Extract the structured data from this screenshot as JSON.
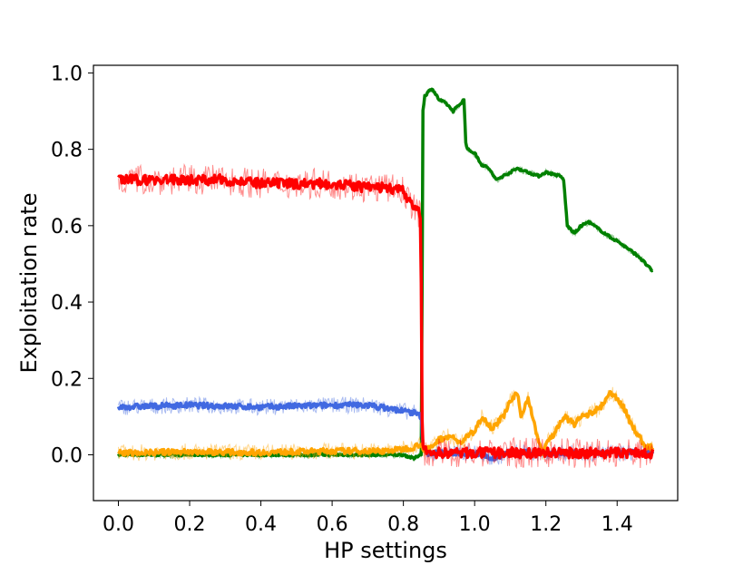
{
  "chart_data": {
    "type": "line",
    "title": "",
    "xlabel": "HP settings",
    "ylabel": "Exploitation rate",
    "xlim": [
      -0.07,
      1.57
    ],
    "ylim": [
      -0.12,
      1.02
    ],
    "xticks": [
      0.0,
      0.2,
      0.4,
      0.6,
      0.8,
      1.0,
      1.2,
      1.4
    ],
    "xtick_labels": [
      "0.0",
      "0.2",
      "0.4",
      "0.6",
      "0.8",
      "1.0",
      "1.2",
      "1.4"
    ],
    "yticks": [
      0.0,
      0.2,
      0.4,
      0.6,
      0.8,
      1.0
    ],
    "ytick_labels": [
      "0.0",
      "0.2",
      "0.4",
      "0.6",
      "0.8",
      "1.0"
    ],
    "grid": false,
    "legend": "none",
    "series": [
      {
        "color": "#008000",
        "x": [
          0.0,
          0.2,
          0.4,
          0.6,
          0.8,
          0.83,
          0.845,
          0.85,
          0.855,
          0.86,
          0.87,
          0.88,
          0.9,
          0.92,
          0.94,
          0.95,
          0.97,
          0.975,
          0.98,
          1.0,
          1.02,
          1.04,
          1.06,
          1.08,
          1.1,
          1.12,
          1.15,
          1.18,
          1.2,
          1.24,
          1.25,
          1.26,
          1.28,
          1.3,
          1.32,
          1.35,
          1.38,
          1.4,
          1.43,
          1.46,
          1.48,
          1.5
        ],
        "y": [
          0.0,
          0.0,
          0.0,
          0.0,
          0.0,
          -0.01,
          0.0,
          0.0,
          0.9,
          0.94,
          0.95,
          0.96,
          0.93,
          0.92,
          0.9,
          0.91,
          0.93,
          0.82,
          0.8,
          0.79,
          0.76,
          0.75,
          0.72,
          0.73,
          0.74,
          0.75,
          0.74,
          0.73,
          0.74,
          0.73,
          0.72,
          0.6,
          0.58,
          0.6,
          0.61,
          0.59,
          0.57,
          0.56,
          0.54,
          0.52,
          0.5,
          0.48
        ],
        "noise": 0.005
      },
      {
        "color": "#4169e1",
        "x": [
          0.0,
          0.2,
          0.4,
          0.6,
          0.7,
          0.8,
          0.83,
          0.85,
          0.855,
          0.87,
          0.9,
          0.95,
          1.0,
          1.03,
          1.05,
          1.1,
          1.2,
          1.3,
          1.4,
          1.5
        ],
        "y": [
          0.125,
          0.13,
          0.125,
          0.13,
          0.13,
          0.115,
          0.11,
          0.1,
          0.02,
          0.005,
          0.005,
          0.005,
          0.005,
          0.0,
          -0.01,
          0.005,
          0.005,
          0.005,
          0.005,
          0.005
        ],
        "noise": 0.012
      },
      {
        "color": "#ffa500",
        "x": [
          0.0,
          0.2,
          0.4,
          0.6,
          0.75,
          0.8,
          0.83,
          0.85,
          0.86,
          0.88,
          0.9,
          0.93,
          0.96,
          0.98,
          1.0,
          1.02,
          1.05,
          1.08,
          1.1,
          1.12,
          1.13,
          1.15,
          1.17,
          1.19,
          1.2,
          1.22,
          1.25,
          1.28,
          1.3,
          1.33,
          1.36,
          1.38,
          1.4,
          1.42,
          1.44,
          1.46,
          1.48,
          1.5
        ],
        "y": [
          0.005,
          0.008,
          0.006,
          0.01,
          0.01,
          0.015,
          0.02,
          0.03,
          0.01,
          0.02,
          0.04,
          0.05,
          0.03,
          0.05,
          0.06,
          0.1,
          0.07,
          0.1,
          0.14,
          0.16,
          0.1,
          0.15,
          0.07,
          0.0,
          0.03,
          0.05,
          0.1,
          0.08,
          0.1,
          0.11,
          0.13,
          0.16,
          0.15,
          0.12,
          0.08,
          0.05,
          0.02,
          0.02
        ],
        "noise": 0.012
      },
      {
        "color": "#ff0000",
        "x": [
          0.0,
          0.05,
          0.1,
          0.2,
          0.3,
          0.4,
          0.5,
          0.6,
          0.7,
          0.75,
          0.8,
          0.82,
          0.84,
          0.848,
          0.85,
          0.852,
          0.855,
          0.86,
          0.87,
          0.9,
          1.0,
          1.1,
          1.2,
          1.3,
          1.4,
          1.5
        ],
        "y": [
          0.72,
          0.72,
          0.72,
          0.72,
          0.72,
          0.71,
          0.71,
          0.71,
          0.7,
          0.7,
          0.69,
          0.66,
          0.64,
          0.62,
          0.45,
          0.1,
          0.03,
          0.01,
          0.005,
          0.005,
          0.005,
          0.005,
          0.005,
          0.005,
          0.005,
          0.005
        ],
        "noise": 0.022
      }
    ]
  }
}
